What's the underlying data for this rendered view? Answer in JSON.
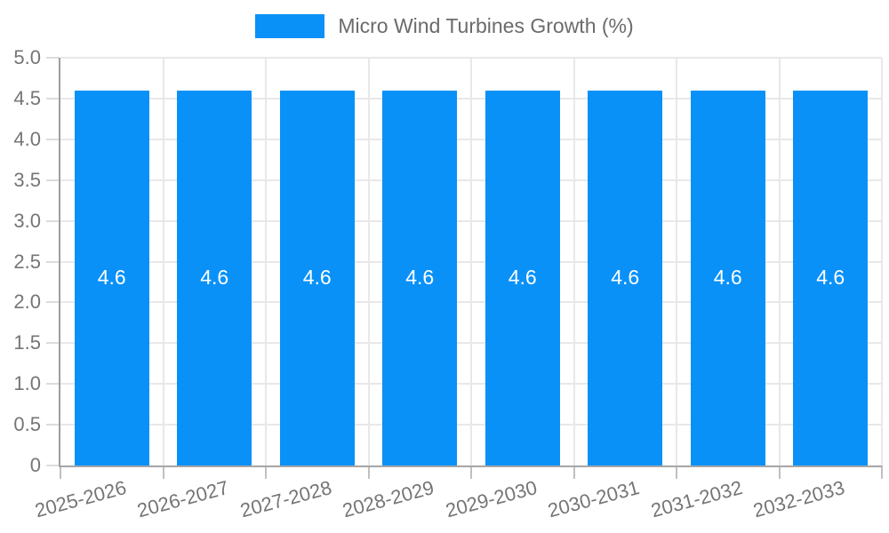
{
  "legend": {
    "label": "Micro Wind Turbines Growth (%)"
  },
  "chart_data": {
    "type": "bar",
    "title": "Micro Wind Turbines Growth (%)",
    "categories": [
      "2025-2026",
      "2026-2027",
      "2027-2028",
      "2028-2029",
      "2029-2030",
      "2030-2031",
      "2031-2032",
      "2032-2033"
    ],
    "series": [
      {
        "name": "Micro Wind Turbines Growth (%)",
        "values": [
          4.6,
          4.6,
          4.6,
          4.6,
          4.6,
          4.6,
          4.6,
          4.6
        ]
      }
    ],
    "value_labels": [
      "4.6",
      "4.6",
      "4.6",
      "4.6",
      "4.6",
      "4.6",
      "4.6",
      "4.6"
    ],
    "xlabel": "",
    "ylabel": "",
    "ylim": [
      0,
      5
    ],
    "y_ticks": [
      {
        "value": 0,
        "label": "0"
      },
      {
        "value": 0.5,
        "label": "0.5"
      },
      {
        "value": 1,
        "label": "1.0"
      },
      {
        "value": 1.5,
        "label": "1.5"
      },
      {
        "value": 2,
        "label": "2.0"
      },
      {
        "value": 2.5,
        "label": "2.5"
      },
      {
        "value": 3,
        "label": "3.0"
      },
      {
        "value": 3.5,
        "label": "3.5"
      },
      {
        "value": 4,
        "label": "4.0"
      },
      {
        "value": 4.5,
        "label": "4.5"
      },
      {
        "value": 5,
        "label": "5.0"
      }
    ],
    "legend_position": "top",
    "grid": true,
    "bar_color": "#0991f8"
  },
  "colors": {
    "bar": "#0991f8",
    "grid": "#e8e8e8",
    "axis": "#9e9e9e",
    "tick_label": "#757575",
    "legend_text": "#6b6b6b",
    "bar_label": "#ffffff"
  }
}
